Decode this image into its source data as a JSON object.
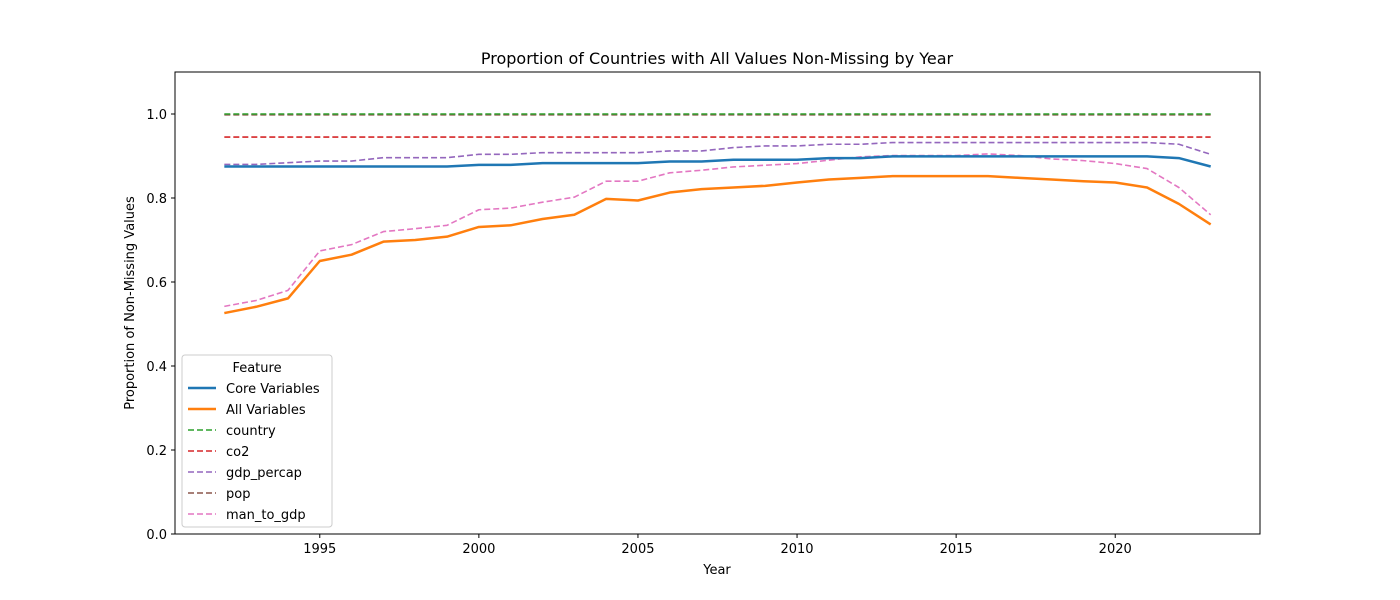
{
  "chart_data": {
    "type": "line",
    "title": "Proportion of Countries with All Values Non-Missing by Year",
    "xlabel": "Year",
    "ylabel": "Proportion of Non-Missing Values",
    "xlim": [
      1990.45,
      1991.45
    ],
    "ylim": [
      0,
      1.1
    ],
    "x_ticks": [
      "1995",
      "2000",
      "2005",
      "2010",
      "2015",
      "2020"
    ],
    "y_ticks": [
      "0.0",
      "0.2",
      "0.4",
      "0.6",
      "0.8",
      "1.0"
    ],
    "grid": false,
    "legend": {
      "title": "Feature",
      "placement": "center-left"
    },
    "x": [
      1992,
      1993,
      1994,
      1995,
      1996,
      1997,
      1998,
      1999,
      2000,
      2001,
      2002,
      2003,
      2004,
      2005,
      2006,
      2007,
      2008,
      2009,
      2010,
      2011,
      2012,
      2013,
      2014,
      2015,
      2016,
      2017,
      2018,
      2019,
      2020,
      2021,
      2022,
      2023
    ],
    "series": [
      {
        "name": "Core Variables",
        "color": "#1f77b4",
        "style": "solid",
        "values": [
          0.875,
          0.875,
          0.875,
          0.875,
          0.875,
          0.875,
          0.875,
          0.875,
          0.879,
          0.879,
          0.883,
          0.883,
          0.883,
          0.883,
          0.887,
          0.887,
          0.891,
          0.891,
          0.891,
          0.895,
          0.895,
          0.899,
          0.899,
          0.899,
          0.899,
          0.899,
          0.899,
          0.899,
          0.899,
          0.899,
          0.895,
          0.875
        ]
      },
      {
        "name": "All Variables",
        "color": "#ff7f0e",
        "style": "solid",
        "values": [
          0.526,
          0.541,
          0.561,
          0.65,
          0.665,
          0.696,
          0.7,
          0.708,
          0.731,
          0.735,
          0.75,
          0.76,
          0.798,
          0.794,
          0.813,
          0.821,
          0.825,
          0.829,
          0.837,
          0.844,
          0.848,
          0.852,
          0.852,
          0.852,
          0.852,
          0.848,
          0.844,
          0.84,
          0.837,
          0.825,
          0.786,
          0.737
        ]
      },
      {
        "name": "country",
        "color": "#2ca02c",
        "style": "dashed",
        "values": [
          1.0,
          1.0,
          1.0,
          1.0,
          1.0,
          1.0,
          1.0,
          1.0,
          1.0,
          1.0,
          1.0,
          1.0,
          1.0,
          1.0,
          1.0,
          1.0,
          1.0,
          1.0,
          1.0,
          1.0,
          1.0,
          1.0,
          1.0,
          1.0,
          1.0,
          1.0,
          1.0,
          1.0,
          1.0,
          1.0,
          1.0,
          1.0
        ]
      },
      {
        "name": "co2",
        "color": "#d62728",
        "style": "dashed",
        "values": [
          0.945,
          0.945,
          0.945,
          0.945,
          0.945,
          0.945,
          0.945,
          0.945,
          0.945,
          0.945,
          0.945,
          0.945,
          0.945,
          0.945,
          0.945,
          0.945,
          0.945,
          0.945,
          0.945,
          0.945,
          0.945,
          0.945,
          0.945,
          0.945,
          0.945,
          0.945,
          0.945,
          0.945,
          0.945,
          0.945,
          0.945,
          0.945
        ]
      },
      {
        "name": "gdp_percap",
        "color": "#9467bd",
        "style": "dashed",
        "values": [
          0.88,
          0.88,
          0.884,
          0.888,
          0.888,
          0.896,
          0.896,
          0.896,
          0.904,
          0.904,
          0.908,
          0.908,
          0.908,
          0.908,
          0.912,
          0.912,
          0.92,
          0.924,
          0.924,
          0.928,
          0.928,
          0.932,
          0.932,
          0.932,
          0.932,
          0.932,
          0.932,
          0.932,
          0.932,
          0.932,
          0.928,
          0.904
        ]
      },
      {
        "name": "pop",
        "color": "#8c564b",
        "style": "dashed",
        "values": [
          0.998,
          0.998,
          0.998,
          0.998,
          0.998,
          0.998,
          0.998,
          0.998,
          0.998,
          0.998,
          0.998,
          0.998,
          0.998,
          0.998,
          0.998,
          0.998,
          0.998,
          0.998,
          0.998,
          0.998,
          0.998,
          0.998,
          0.998,
          0.998,
          0.998,
          0.998,
          0.998,
          0.998,
          0.998,
          0.998,
          0.998,
          0.998
        ]
      },
      {
        "name": "man_to_gdp",
        "color": "#e377c2",
        "style": "dashed",
        "values": [
          0.542,
          0.556,
          0.58,
          0.674,
          0.689,
          0.72,
          0.727,
          0.735,
          0.772,
          0.776,
          0.79,
          0.802,
          0.84,
          0.84,
          0.86,
          0.866,
          0.874,
          0.878,
          0.882,
          0.89,
          0.898,
          0.901,
          0.901,
          0.901,
          0.905,
          0.901,
          0.893,
          0.889,
          0.882,
          0.87,
          0.825,
          0.76
        ]
      }
    ]
  }
}
